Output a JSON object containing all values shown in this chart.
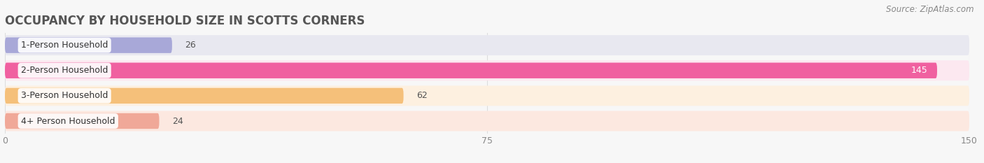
{
  "title": "OCCUPANCY BY HOUSEHOLD SIZE IN SCOTTS CORNERS",
  "source": "Source: ZipAtlas.com",
  "categories": [
    "1-Person Household",
    "2-Person Household",
    "3-Person Household",
    "4+ Person Household"
  ],
  "values": [
    26,
    145,
    62,
    24
  ],
  "bar_colors": [
    "#a8a8d8",
    "#f060a0",
    "#f5c07a",
    "#f0a898"
  ],
  "bar_bg_colors": [
    "#e8e8f0",
    "#fce8f0",
    "#fdf0e0",
    "#fce8e0"
  ],
  "xlim": [
    0,
    150
  ],
  "xticks": [
    0,
    75,
    150
  ],
  "title_fontsize": 12,
  "label_fontsize": 9,
  "value_fontsize": 9,
  "source_fontsize": 8.5,
  "title_color": "#555555",
  "label_color": "#333333",
  "value_color_dark": "#555555",
  "value_color_light": "#ffffff",
  "tick_color": "#888888",
  "grid_color": "#dddddd",
  "background_color": "#f7f7f7"
}
